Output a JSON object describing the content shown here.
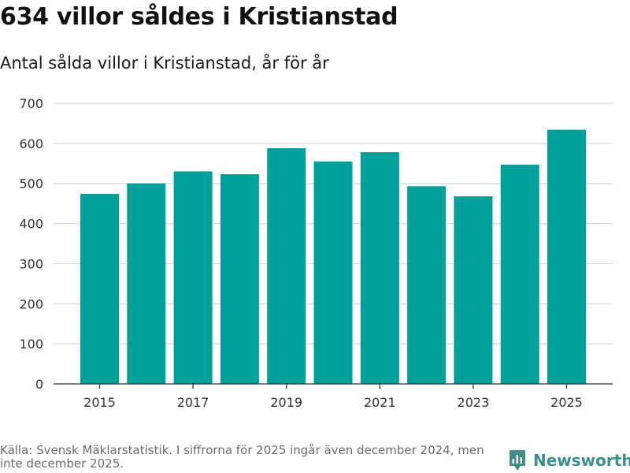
{
  "title": "634 villor såldes i Kristianstad",
  "subtitle": "Antal sålda villor i Kristianstad, år för år",
  "source": "Källa: Svensk Mäklarstatistik. I siffrorna för 2025 ingår även december 2024, men inte december 2025.",
  "brand": {
    "name": "Newsworthy",
    "icon": "newsworthy-logo-icon",
    "color": "#3d8f8c"
  },
  "colors": {
    "bar": "#00a19a",
    "grid": "#d9d9d9",
    "axis": "#333333",
    "text": "#111111"
  },
  "chart_data": {
    "type": "bar",
    "categories": [
      "2015",
      "2016",
      "2017",
      "2018",
      "2019",
      "2020",
      "2021",
      "2022",
      "2023",
      "2024",
      "2025"
    ],
    "values": [
      474,
      500,
      530,
      523,
      588,
      555,
      578,
      493,
      468,
      547,
      634
    ],
    "x_tick_labels": [
      "2015",
      "2017",
      "2019",
      "2021",
      "2023",
      "2025"
    ],
    "y_ticks": [
      0,
      100,
      200,
      300,
      400,
      500,
      600,
      700
    ],
    "ylim": [
      0,
      700
    ],
    "xlabel": "",
    "ylabel": "",
    "grid": true,
    "legend": "none"
  }
}
